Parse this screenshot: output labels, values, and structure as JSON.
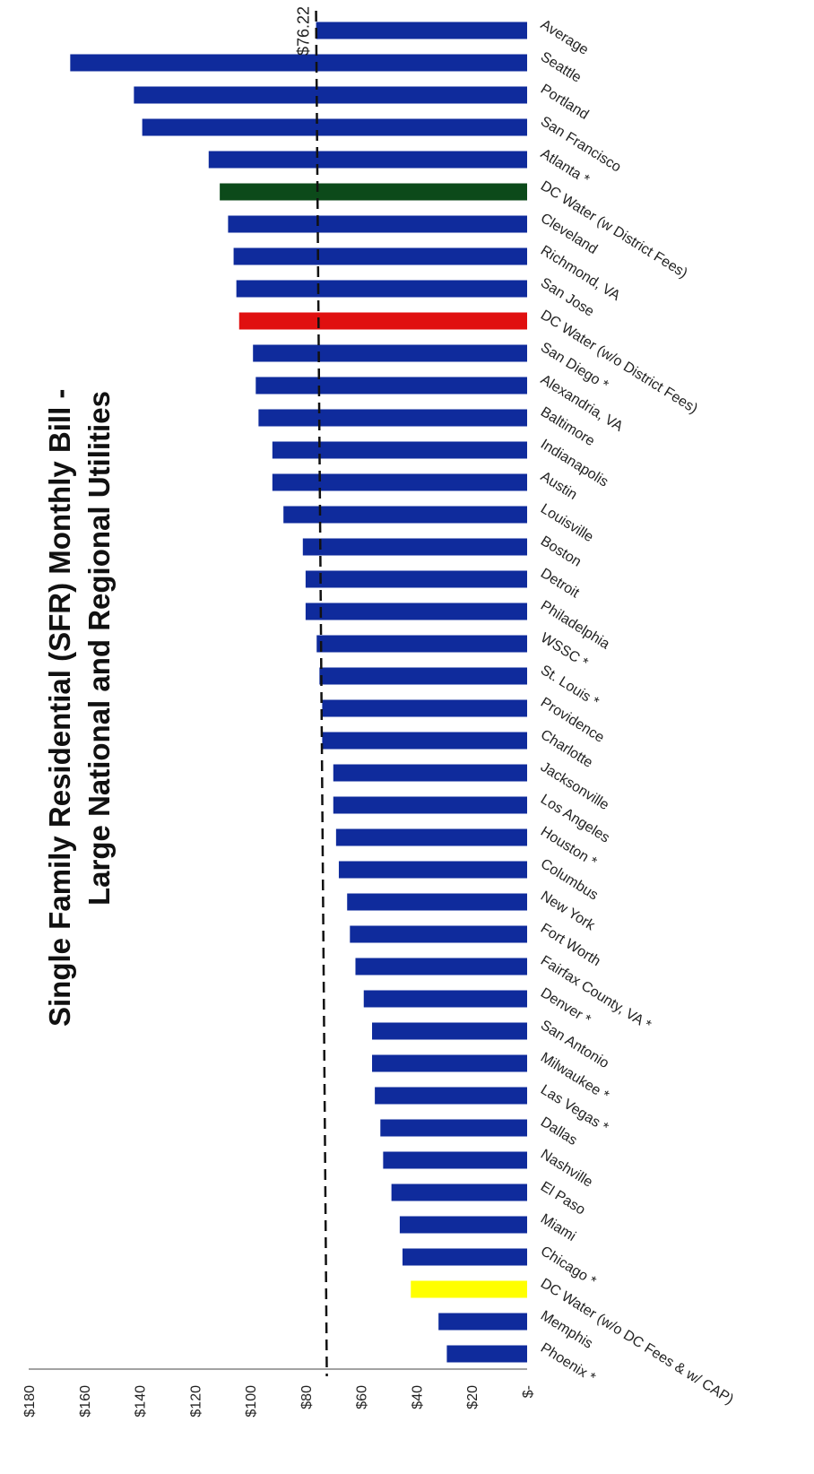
{
  "chart_data": {
    "type": "bar",
    "orientation": "rotated-90-degrees",
    "title": "Single Family Residential (SFR) Monthly Bill -",
    "subtitle": "Large National and Regional Utilities",
    "xlabel": "",
    "ylabel": "",
    "ylim": [
      0,
      180
    ],
    "yticks": [
      "$180",
      "$160",
      "$140",
      "$120",
      "$100",
      "$80",
      "$60",
      "$40",
      "$20",
      "$-"
    ],
    "grid": false,
    "average": {
      "label": "$76.22",
      "value": 76.22
    },
    "categories": [
      "Average",
      "Seattle",
      "Portland",
      "San Francisco",
      "Atlanta *",
      "DC Water (w District Fees)",
      "Cleveland",
      "Richmond, VA",
      "San Jose",
      "DC Water (w/o District Fees)",
      "San Diego *",
      "Alexandria, VA",
      "Baltimore",
      "Indianapolis",
      "Austin",
      "Louisville",
      "Boston",
      "Detroit",
      "Philadelphia",
      "WSSC *",
      "St. Louis *",
      "Providence",
      "Charlotte",
      "Jacksonville",
      "Los Angeles",
      "Houston *",
      "Columbus",
      "New York",
      "Fort Worth",
      "Fairfax County, VA *",
      "Denver *",
      "San Antonio",
      "Milwaukee *",
      "Las Vegas *",
      "Dallas",
      "Nashville",
      "El Paso",
      "Miami",
      "Chicago *",
      "DC Water (w/o DC Fees & w/ CAP)",
      "Memphis",
      "Phoenix *"
    ],
    "values": [
      76.22,
      165,
      142,
      139,
      115,
      111,
      108,
      106,
      105,
      104,
      99,
      98,
      97,
      92,
      92,
      88,
      81,
      80,
      80,
      76,
      75,
      74,
      74,
      70,
      70,
      69,
      68,
      65,
      64,
      62,
      59,
      56,
      56,
      55,
      53,
      52,
      49,
      46,
      45,
      42,
      32,
      29
    ],
    "colors": {
      "default": "#0f2b9c",
      "DC Water (w District Fees)": "#0c4a1a",
      "DC Water (w/o District Fees)": "#e01010",
      "DC Water (w/o DC Fees & w/ CAP)": "#ffff00"
    }
  }
}
